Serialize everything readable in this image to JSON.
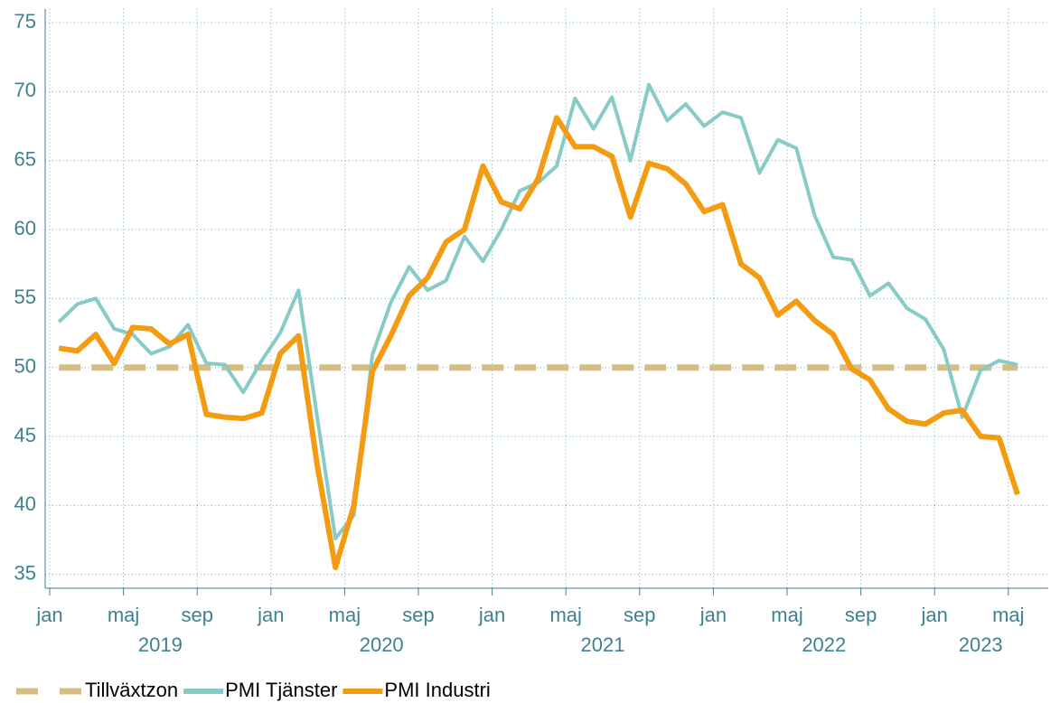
{
  "chart_data": {
    "type": "line",
    "x": [
      "2019-01",
      "2019-02",
      "2019-03",
      "2019-04",
      "2019-05",
      "2019-06",
      "2019-07",
      "2019-08",
      "2019-09",
      "2019-10",
      "2019-11",
      "2019-12",
      "2020-01",
      "2020-02",
      "2020-03",
      "2020-04",
      "2020-05",
      "2020-06",
      "2020-07",
      "2020-08",
      "2020-09",
      "2020-10",
      "2020-11",
      "2020-12",
      "2021-01",
      "2021-02",
      "2021-03",
      "2021-04",
      "2021-05",
      "2021-06",
      "2021-07",
      "2021-08",
      "2021-09",
      "2021-10",
      "2021-11",
      "2021-12",
      "2022-01",
      "2022-02",
      "2022-03",
      "2022-04",
      "2022-05",
      "2022-06",
      "2022-07",
      "2022-08",
      "2022-09",
      "2022-10",
      "2022-11",
      "2022-12",
      "2023-01",
      "2023-02",
      "2023-03",
      "2023-04",
      "2023-05"
    ],
    "series": [
      {
        "name": "Tillväxtzon",
        "color": "#d8bd80",
        "dashed": true,
        "values": [
          50,
          50,
          50,
          50,
          50,
          50,
          50,
          50,
          50,
          50,
          50,
          50,
          50,
          50,
          50,
          50,
          50,
          50,
          50,
          50,
          50,
          50,
          50,
          50,
          50,
          50,
          50,
          50,
          50,
          50,
          50,
          50,
          50,
          50,
          50,
          50,
          50,
          50,
          50,
          50,
          50,
          50,
          50,
          50,
          50,
          50,
          50,
          50,
          50,
          50,
          50,
          50,
          50
        ]
      },
      {
        "name": "PMI Tjänster",
        "color": "#86cbc6",
        "values": [
          53.3,
          54.6,
          55.0,
          52.8,
          52.4,
          51.0,
          51.5,
          53.1,
          50.3,
          50.2,
          48.2,
          50.5,
          52.5,
          55.6,
          46.5,
          37.6,
          39.3,
          50.9,
          54.7,
          57.3,
          55.6,
          56.3,
          59.5,
          57.7,
          60.0,
          62.8,
          63.4,
          64.6,
          69.5,
          67.3,
          69.6,
          65.0,
          70.5,
          67.9,
          69.1,
          67.5,
          68.5,
          68.1,
          64.1,
          66.5,
          65.9,
          61.0,
          58.0,
          57.8,
          55.2,
          56.1,
          54.3,
          53.5,
          51.3,
          46.4,
          49.8,
          50.5,
          50.2
        ]
      },
      {
        "name": "PMI Industri",
        "color": "#f39c12",
        "values": [
          51.4,
          51.2,
          52.4,
          50.3,
          52.9,
          52.8,
          51.7,
          52.4,
          46.6,
          46.4,
          46.3,
          46.7,
          51.0,
          52.3,
          43.0,
          35.5,
          40.0,
          49.7,
          52.3,
          55.2,
          56.5,
          59.1,
          60.0,
          64.6,
          62.0,
          61.5,
          63.7,
          68.1,
          66.0,
          66.0,
          65.3,
          60.9,
          64.8,
          64.4,
          63.3,
          61.3,
          61.8,
          57.5,
          56.5,
          53.8,
          54.8,
          53.4,
          52.4,
          49.9,
          49.1,
          47.0,
          46.1,
          45.9,
          46.7,
          46.9,
          45.0,
          44.9,
          40.8
        ]
      }
    ],
    "xticks": [
      {
        "value": "2019-01",
        "label": "jan"
      },
      {
        "value": "2019-05",
        "label": "maj"
      },
      {
        "value": "2019-09",
        "label": "sep"
      },
      {
        "value": "2020-01",
        "label": "jan"
      },
      {
        "value": "2020-05",
        "label": "maj"
      },
      {
        "value": "2020-09",
        "label": "sep"
      },
      {
        "value": "2021-01",
        "label": "jan"
      },
      {
        "value": "2021-05",
        "label": "maj"
      },
      {
        "value": "2021-09",
        "label": "sep"
      },
      {
        "value": "2022-01",
        "label": "jan"
      },
      {
        "value": "2022-05",
        "label": "maj"
      },
      {
        "value": "2022-09",
        "label": "sep"
      },
      {
        "value": "2023-01",
        "label": "jan"
      },
      {
        "value": "2023-05",
        "label": "maj"
      }
    ],
    "years": [
      "2019",
      "2020",
      "2021",
      "2022",
      "2023"
    ],
    "ylim": [
      34,
      76
    ],
    "yticks": [
      35,
      40,
      45,
      50,
      55,
      60,
      65,
      70,
      75
    ],
    "grid": true,
    "legend": "bottom"
  }
}
